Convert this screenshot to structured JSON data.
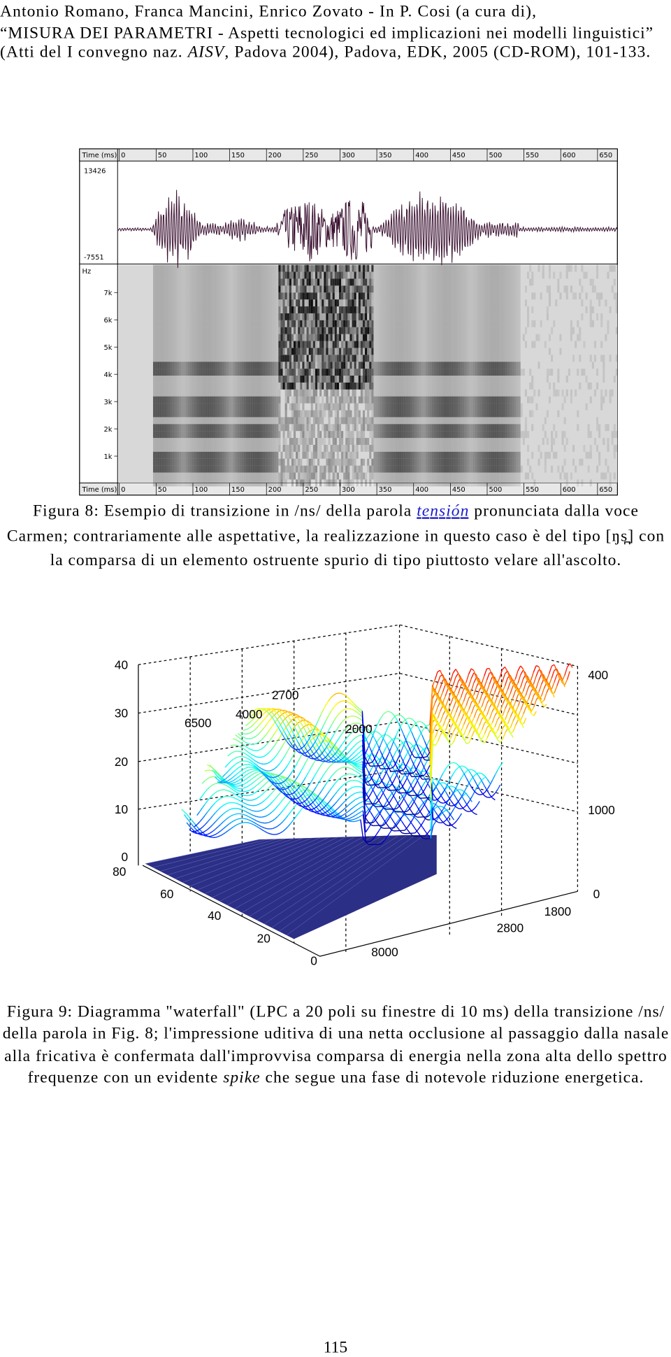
{
  "header": {
    "lines": [
      [
        "Antonio Romano, Franca Mancini, Enrico Zovato - In P. Cosi (a cura di),"
      ],
      [
        "“MISURA DEI PARAMETRI - Aspetti tecnologici ed implicazioni nei modelli linguistici”"
      ],
      [
        "(Atti del I convegno naz. ",
        "AISV",
        ", Padova 2004), Padova, EDK, 2005 (CD-ROM), 101-133."
      ]
    ]
  },
  "figure8": {
    "time_label": "Time (ms)",
    "time_ticks": [
      "0",
      "50",
      "100",
      "150",
      "200",
      "250",
      "300",
      "350",
      "400",
      "450",
      "500",
      "550",
      "600",
      "650"
    ],
    "amp_max": "13426",
    "amp_min": "-7551",
    "freq_label": "Hz",
    "freq_ticks": [
      "7k",
      "6k",
      "5k",
      "4k",
      "3k",
      "2k",
      "1k"
    ],
    "caption": [
      [
        "Figura 8: Esempio di transizione in /ns/ della parola ",
        "tensión",
        " pronunciata dalla voce"
      ],
      [
        "Carmen; contrariamente alle aspettative, la realizzazione in questo caso è del tipo [ŋs̪] con"
      ],
      [
        "la comparsa di un elemento ostruente spurio di tipo piuttosto velare all'ascolto."
      ]
    ]
  },
  "figure9": {
    "z_ticks": [
      "40",
      "30",
      "20",
      "10",
      "0"
    ],
    "right_labels": [
      "400",
      "1000",
      "0"
    ],
    "depth_ticks": [
      "80",
      "60",
      "40",
      "20",
      "0"
    ],
    "freq_ticks": [
      "8000",
      "2800",
      "1800"
    ],
    "annotations": [
      "6500",
      "4000",
      "2700",
      "2000"
    ],
    "caption": [
      [
        "Figura 9: Diagramma \"waterfall\" (LPC a 20 poli su finestre di 10 ms) della transizione /ns/"
      ],
      [
        "della parola in Fig. 8; l'impressione uditiva di una netta occlusione al passaggio dalla nasale"
      ],
      [
        "alla fricativa è confermata dall'improvvisa comparsa di energia nella zona alta dello spettro"
      ],
      [
        "frequenze con un evidente ",
        "spike",
        " che segue una fase di notevole riduzione energetica."
      ]
    ]
  },
  "page_number": "115"
}
